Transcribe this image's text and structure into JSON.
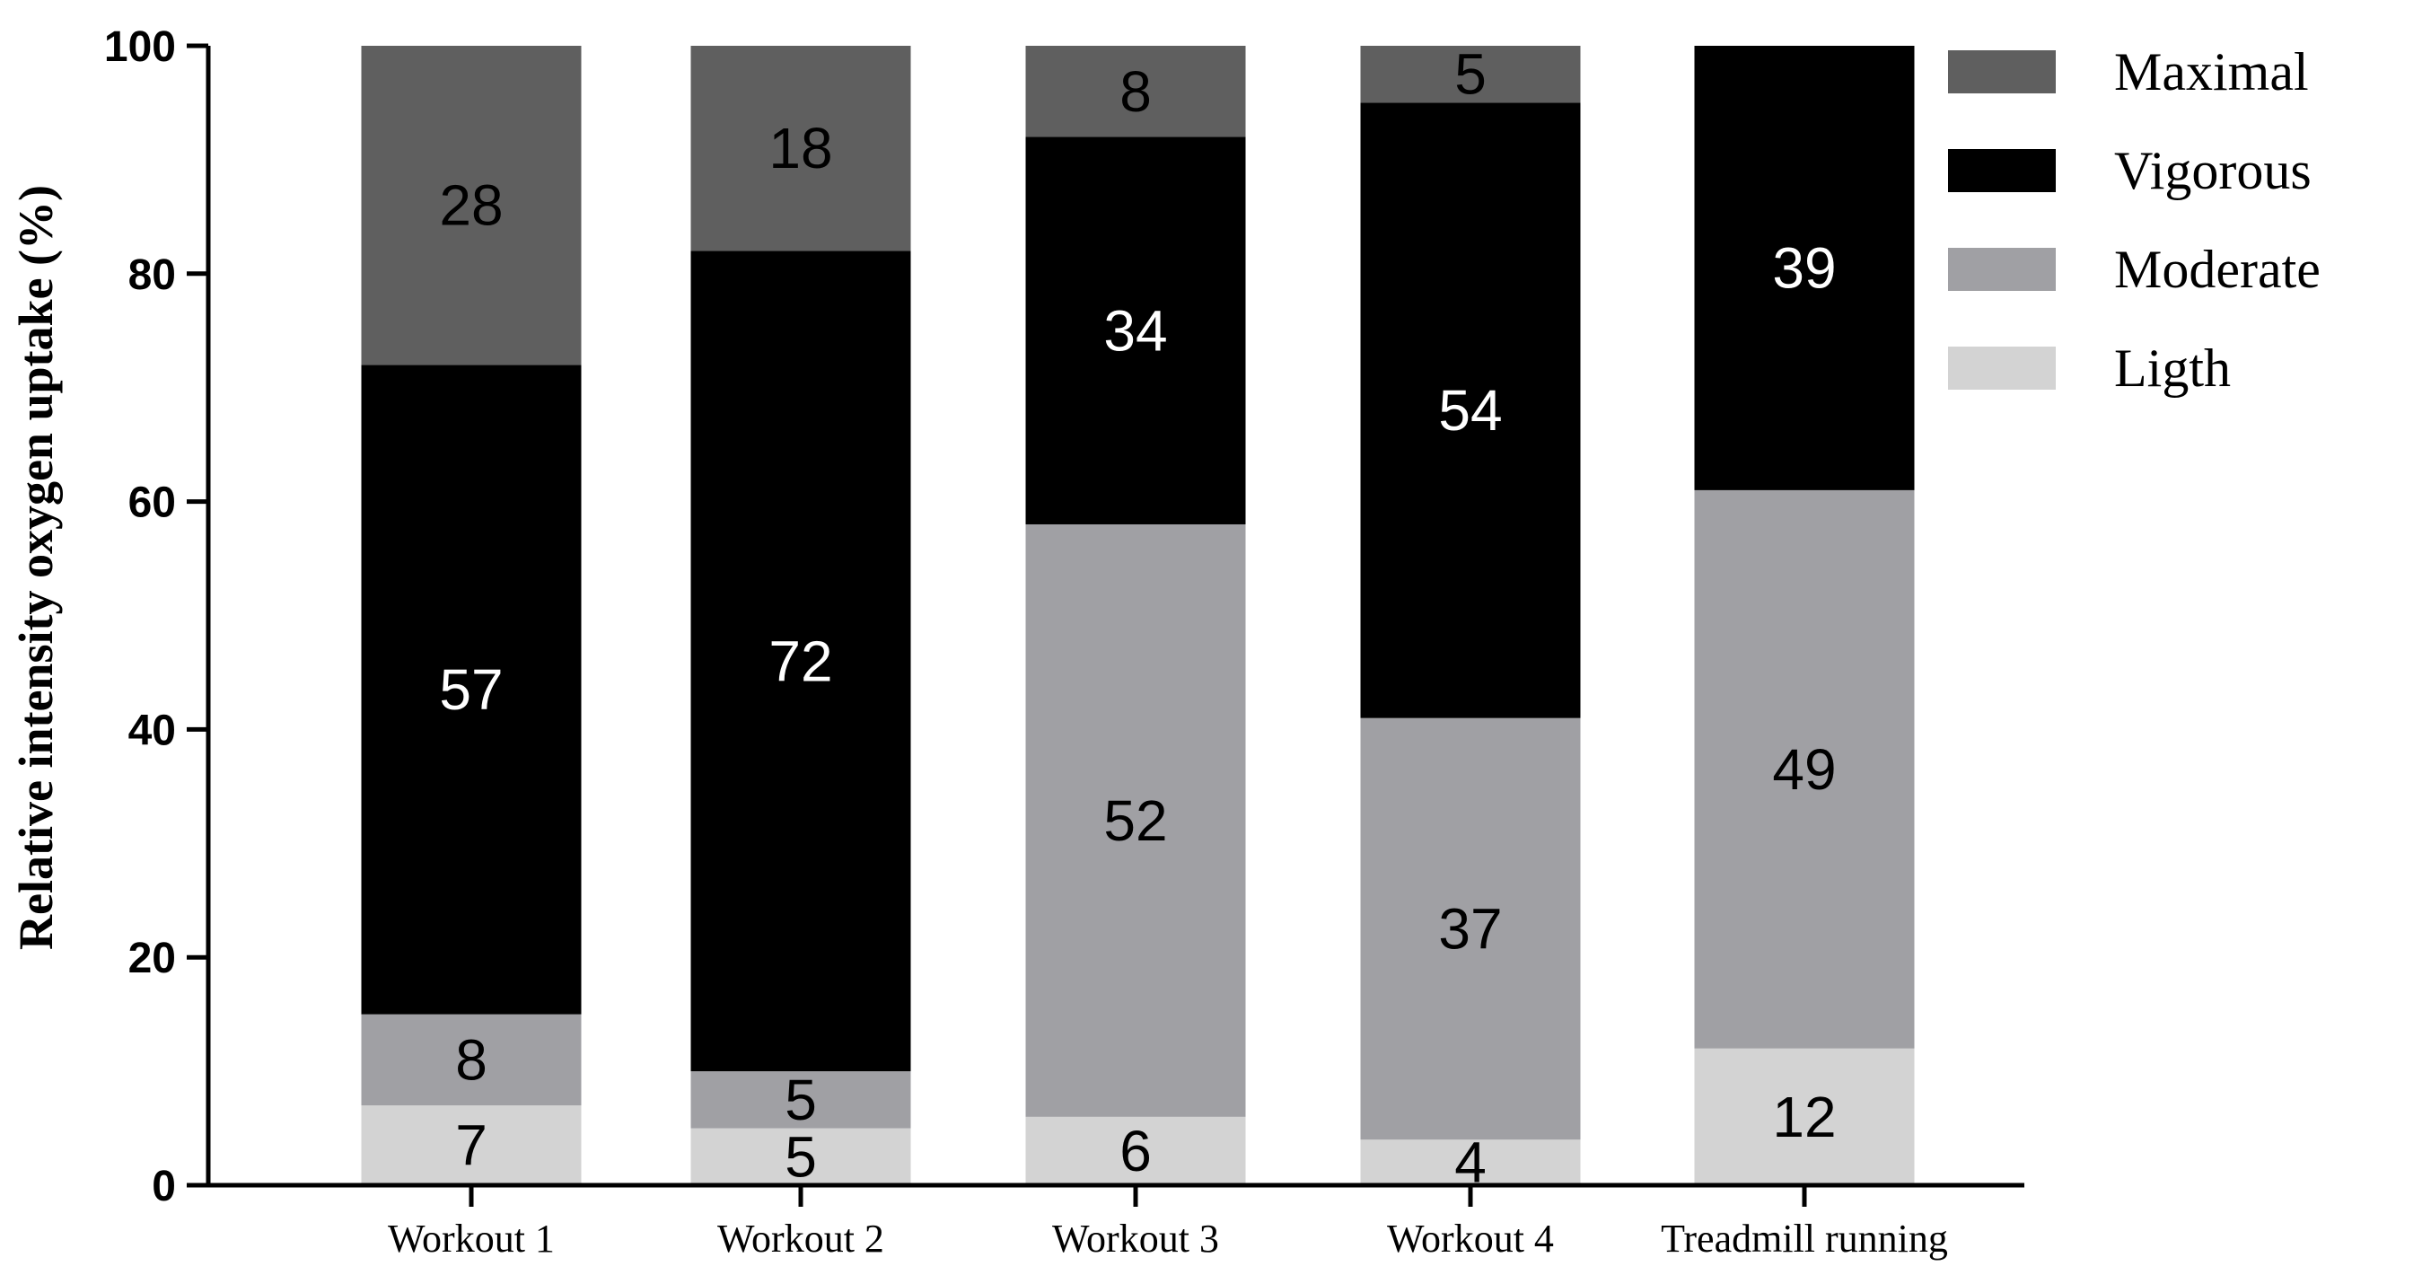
{
  "chart_data": {
    "type": "bar",
    "stacked": true,
    "categories": [
      "Workout 1",
      "Workout 2",
      "Workout 3",
      "Workout 4",
      "Treadmill running"
    ],
    "series": [
      {
        "name": "Ligth",
        "color": "#d3d3d3",
        "label_color": "#000000",
        "values": [
          7,
          5,
          6,
          4,
          12
        ]
      },
      {
        "name": "Moderate",
        "color": "#a0a0a4",
        "label_color": "#000000",
        "values": [
          8,
          5,
          52,
          37,
          49
        ]
      },
      {
        "name": "Vigorous",
        "color": "#000000",
        "label_color": "#ffffff",
        "values": [
          57,
          72,
          34,
          54,
          39
        ]
      },
      {
        "name": "Maximal",
        "color": "#5f5f5f",
        "label_color": "#000000",
        "values": [
          28,
          18,
          8,
          5,
          0
        ]
      }
    ],
    "legend_order": [
      "Maximal",
      "Vigorous",
      "Moderate",
      "Ligth"
    ],
    "legend_position": "top-right",
    "xlabel": "",
    "ylabel": "Relative intensity oxygen uptake (%)",
    "ylim": [
      0,
      100
    ],
    "yticks": [
      0,
      20,
      40,
      60,
      80,
      100
    ],
    "grid": false
  }
}
